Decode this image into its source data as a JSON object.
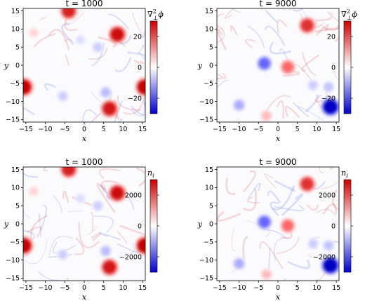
{
  "chart_data": [
    {
      "type": "heatmap",
      "title": "t = 1000",
      "xlabel": "x",
      "ylabel": "y",
      "xlim": [
        -15.7,
        15.7
      ],
      "ylim": [
        -15.7,
        15.7
      ],
      "xticks": [
        -15,
        -10,
        -5,
        0,
        5,
        10,
        15
      ],
      "yticks": [
        15,
        10,
        5,
        0,
        -5,
        -10,
        -15
      ],
      "colorbar": {
        "label_html": "∇",
        "label_sup": "2",
        "label_sub": "⊥",
        "label_tail": "ϕ",
        "ticks": [
          20,
          0,
          -20
        ],
        "range": [
          -30,
          30
        ]
      },
      "vortices": [
        {
          "x": -4,
          "y": 15,
          "v": 26
        },
        {
          "x": 8.5,
          "y": 8.5,
          "v": 28
        },
        {
          "x": -15.5,
          "y": -6,
          "v": 30
        },
        {
          "x": 15.5,
          "y": -6,
          "v": 30
        },
        {
          "x": 6.5,
          "y": -12,
          "v": 27
        },
        {
          "x": -5.5,
          "y": -8.5,
          "v": -6
        },
        {
          "x": 5.5,
          "y": -7.5,
          "v": -8
        },
        {
          "x": -1,
          "y": 7,
          "v": -4
        },
        {
          "x": -13,
          "y": 9,
          "v": 5
        },
        {
          "x": 3.5,
          "y": 5,
          "v": -6
        }
      ]
    },
    {
      "type": "heatmap",
      "title": "t = 9000",
      "xlabel": "x",
      "ylabel": "y",
      "xlim": [
        -15.7,
        15.7
      ],
      "ylim": [
        -15.7,
        15.7
      ],
      "xticks": [
        -15,
        -10,
        -5,
        0,
        5,
        10,
        15
      ],
      "yticks": [
        15,
        10,
        5,
        0,
        -5,
        -10,
        -15
      ],
      "colorbar": {
        "label_html": "∇",
        "label_sup": "2",
        "label_sub": "⊥",
        "label_tail": "ϕ",
        "ticks": [
          20,
          0,
          -20
        ],
        "range": [
          -30,
          30
        ]
      },
      "vortices": [
        {
          "x": 7.5,
          "y": 11,
          "v": 24
        },
        {
          "x": -3.5,
          "y": 0.5,
          "v": -18
        },
        {
          "x": 2.5,
          "y": -0.5,
          "v": 18
        },
        {
          "x": 13.5,
          "y": -11.5,
          "v": -30
        },
        {
          "x": -10,
          "y": -11,
          "v": -10
        },
        {
          "x": -3,
          "y": -14,
          "v": 8
        },
        {
          "x": 9,
          "y": -5.5,
          "v": -6
        },
        {
          "x": 13,
          "y": -6,
          "v": -7
        }
      ]
    },
    {
      "type": "heatmap",
      "title": "t = 1000",
      "xlabel": "x",
      "ylabel": "y",
      "xlim": [
        -15.7,
        15.7
      ],
      "ylim": [
        -15.7,
        15.7
      ],
      "xticks": [
        -15,
        -10,
        -5,
        0,
        5,
        10,
        15
      ],
      "yticks": [
        15,
        10,
        5,
        0,
        -5,
        -10,
        -15
      ],
      "colorbar": {
        "label_html": "n",
        "label_sup": "",
        "label_sub": "i",
        "label_tail": "",
        "ticks": [
          2000,
          0,
          -2000
        ],
        "range": [
          -3000,
          3000
        ]
      },
      "vortices": [
        {
          "x": -4,
          "y": 15,
          "v": 2600
        },
        {
          "x": 8.5,
          "y": 8.5,
          "v": 2800
        },
        {
          "x": -15.5,
          "y": -6,
          "v": 3000
        },
        {
          "x": 15.5,
          "y": -6,
          "v": 3000
        },
        {
          "x": 6.5,
          "y": -12,
          "v": 2700
        },
        {
          "x": -5.5,
          "y": -8.5,
          "v": -600
        },
        {
          "x": 5.5,
          "y": -7.5,
          "v": -800
        },
        {
          "x": -1,
          "y": 7,
          "v": -400
        },
        {
          "x": -13,
          "y": 9,
          "v": 500
        },
        {
          "x": 3.5,
          "y": 5,
          "v": -600
        }
      ]
    },
    {
      "type": "heatmap",
      "title": "t = 9000",
      "xlabel": "x",
      "ylabel": "y",
      "xlim": [
        -15.7,
        15.7
      ],
      "ylim": [
        -15.7,
        15.7
      ],
      "xticks": [
        -15,
        -10,
        -5,
        0,
        5,
        10,
        15
      ],
      "yticks": [
        15,
        10,
        5,
        0,
        -5,
        -10,
        -15
      ],
      "colorbar": {
        "label_html": "n",
        "label_sup": "",
        "label_sub": "i",
        "label_tail": "",
        "ticks": [
          2000,
          0,
          -2000
        ],
        "range": [
          -3000,
          3000
        ]
      },
      "vortices": [
        {
          "x": 7.5,
          "y": 11,
          "v": 2400
        },
        {
          "x": -3.5,
          "y": 0.5,
          "v": -1800
        },
        {
          "x": 2.5,
          "y": -0.5,
          "v": 1800
        },
        {
          "x": 13.5,
          "y": -11.5,
          "v": -3000
        },
        {
          "x": -10,
          "y": -11,
          "v": -1000
        },
        {
          "x": -3,
          "y": -14,
          "v": 800
        },
        {
          "x": 9,
          "y": -5.5,
          "v": -600
        },
        {
          "x": 13,
          "y": -6,
          "v": -700
        }
      ]
    }
  ]
}
